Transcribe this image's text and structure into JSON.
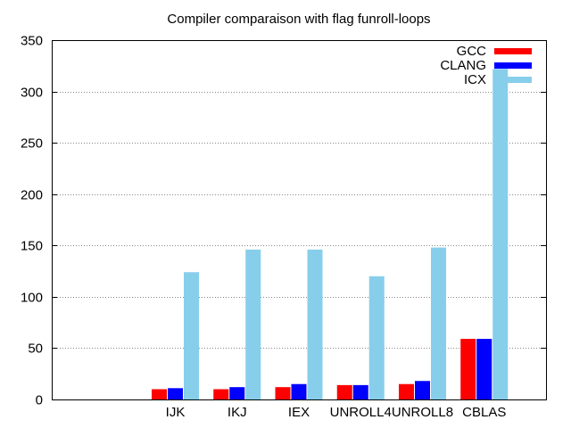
{
  "chart_data": {
    "type": "bar",
    "title": "Compiler comparaison with flag funroll-loops",
    "xlabel": "",
    "ylabel": "",
    "ylim": [
      0,
      350
    ],
    "yticks": [
      0,
      50,
      100,
      150,
      200,
      250,
      300,
      350
    ],
    "categories": [
      "",
      "IJK",
      "IKJ",
      "IEX",
      "UNROLL4",
      "UNROLL8",
      "CBLAS"
    ],
    "series": [
      {
        "name": "GCC",
        "color": "#ff0000",
        "values": [
          null,
          10,
          10,
          12,
          14,
          15,
          59
        ]
      },
      {
        "name": "CLANG",
        "color": "#0000ff",
        "values": [
          null,
          11,
          12,
          15,
          14,
          18,
          59
        ]
      },
      {
        "name": "ICX",
        "color": "#87ceeb",
        "values": [
          null,
          124,
          146,
          146,
          120,
          148,
          322
        ]
      }
    ],
    "grid": true,
    "legend_position": "top-right"
  }
}
